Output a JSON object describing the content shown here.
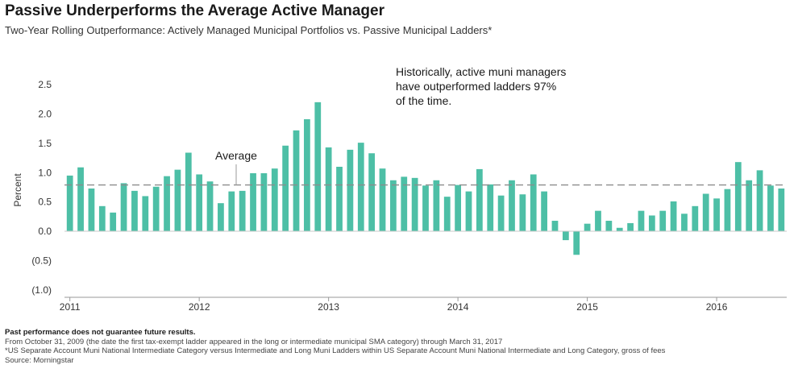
{
  "header": {
    "title": "Passive Underperforms the Average Active Manager",
    "subtitle": "Two-Year Rolling Outperformance: Actively Managed Municipal Portfolios vs. Passive Municipal Ladders*"
  },
  "chart_data": {
    "type": "bar",
    "title": "Passive Underperforms the Average Active Manager",
    "ylabel": "Percent",
    "xlabel": "",
    "ylim": [
      -1.0,
      2.5
    ],
    "y_ticks": [
      2.5,
      2.0,
      1.5,
      1.0,
      0.5,
      0.0,
      -0.5,
      -1.0
    ],
    "y_tick_labels": [
      "2.5",
      "2.0",
      "1.5",
      "1.0",
      "0.5",
      "0.0",
      "(0.5)",
      "(1.0)"
    ],
    "x_tick_labels": [
      {
        "label": "2011",
        "index": 0
      },
      {
        "label": "2012",
        "index": 12
      },
      {
        "label": "2013",
        "index": 24
      },
      {
        "label": "2014",
        "index": 36
      },
      {
        "label": "2015",
        "index": 48
      },
      {
        "label": "2016",
        "index": 60
      }
    ],
    "frequency": "monthly",
    "values": [
      0.95,
      1.09,
      0.73,
      0.43,
      0.32,
      0.82,
      0.69,
      0.6,
      0.76,
      0.94,
      1.05,
      1.34,
      0.97,
      0.85,
      0.48,
      0.68,
      0.69,
      0.99,
      0.99,
      1.07,
      1.46,
      1.72,
      1.91,
      2.2,
      1.43,
      1.1,
      1.39,
      1.51,
      1.33,
      1.07,
      0.87,
      0.93,
      0.91,
      0.78,
      0.87,
      0.59,
      0.79,
      0.68,
      1.06,
      0.8,
      0.61,
      0.87,
      0.63,
      0.97,
      0.68,
      0.18,
      -0.15,
      -0.4,
      0.13,
      0.35,
      0.18,
      0.06,
      0.14,
      0.35,
      0.27,
      0.35,
      0.51,
      0.3,
      0.43,
      0.64,
      0.56,
      0.72,
      1.18,
      0.87,
      1.04,
      0.78,
      0.73
    ],
    "average": 0.79,
    "average_label": "Average",
    "annotation": "Historically, active muni managers have outperformed ladders 97% of the time.",
    "grid": false,
    "bar_color": "#4dbfa6",
    "average_line_color": "#8c8c8c"
  },
  "footer": {
    "disclaimer": "Past performance does not guarantee future results.",
    "period_note": "From October 31, 2009 (the date the first tax-exempt ladder appeared in the long or intermediate municipal SMA category) through March 31, 2017",
    "category_note": "*US Separate Account Muni National Intermediate Category versus Intermediate and Long Muni Ladders within US Separate Account Muni National Intermediate and Long Category, gross of fees",
    "source": "Source: Morningstar"
  }
}
